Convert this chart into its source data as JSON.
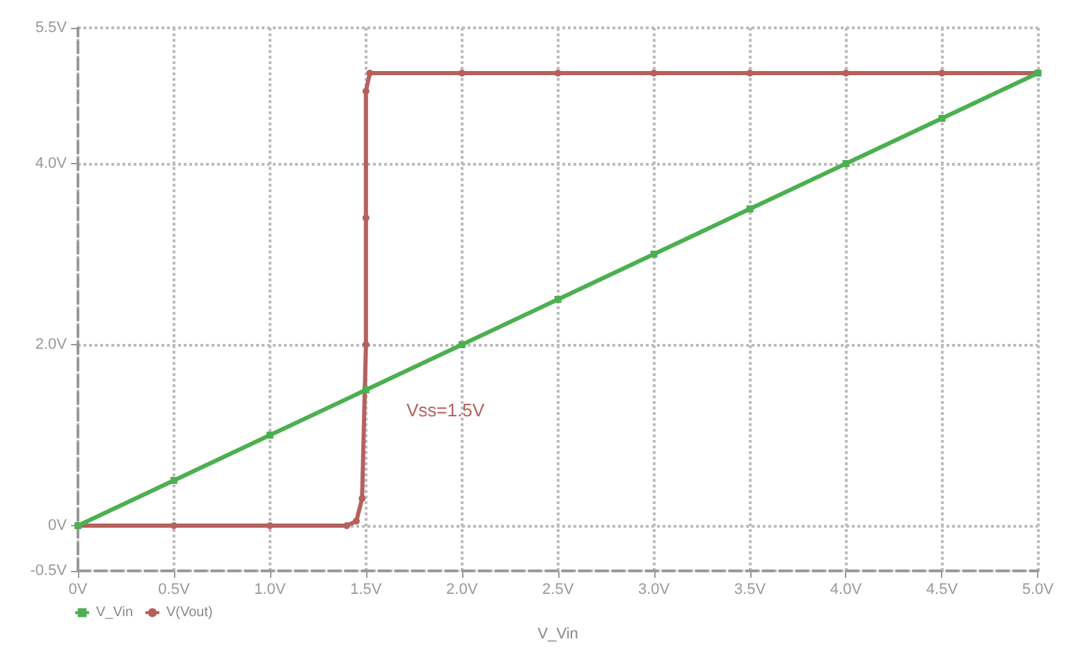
{
  "chart_data": {
    "type": "line",
    "xlabel": "V_Vin",
    "series": [
      {
        "name": "V_Vin",
        "color": "#4caf50",
        "marker": "square",
        "x": [
          0,
          0.5,
          1.0,
          1.5,
          2.0,
          2.5,
          3.0,
          3.5,
          4.0,
          4.5,
          5.0
        ],
        "values": [
          0,
          0.5,
          1.0,
          1.5,
          2.0,
          2.5,
          3.0,
          3.5,
          4.0,
          4.5,
          5.0
        ]
      },
      {
        "name": "V(Vout)",
        "color": "#b5615f",
        "marker": "circle",
        "x": [
          0,
          0.5,
          1.0,
          1.4,
          1.45,
          1.48,
          1.5,
          1.5,
          1.5,
          1.52,
          2.0,
          2.5,
          3.0,
          3.5,
          4.0,
          4.5,
          5.0
        ],
        "values": [
          0,
          0,
          0,
          0,
          0.05,
          0.3,
          2.0,
          3.4,
          4.8,
          5.0,
          5.0,
          5.0,
          5.0,
          5.0,
          5.0,
          5.0,
          5.0
        ]
      }
    ],
    "annotations": [
      "Vss=1.5V"
    ],
    "xlim": [
      0,
      5.0
    ],
    "xticks": [
      {
        "value": 0,
        "label": "0V"
      },
      {
        "value": 0.5,
        "label": "0.5V"
      },
      {
        "value": 1.0,
        "label": "1.0V"
      },
      {
        "value": 1.5,
        "label": "1.5V"
      },
      {
        "value": 2.0,
        "label": "2.0V"
      },
      {
        "value": 2.5,
        "label": "2.5V"
      },
      {
        "value": 3.0,
        "label": "3.0V"
      },
      {
        "value": 3.5,
        "label": "3.5V"
      },
      {
        "value": 4.0,
        "label": "4.0V"
      },
      {
        "value": 4.5,
        "label": "4.5V"
      },
      {
        "value": 5.0,
        "label": "5.0V"
      }
    ],
    "ylim": [
      -0.5,
      5.5
    ],
    "yticks": [
      {
        "value": -0.5,
        "label": "-0.5V"
      },
      {
        "value": 0,
        "label": "0V"
      },
      {
        "value": 2.0,
        "label": "2.0V"
      },
      {
        "value": 4.0,
        "label": "4.0V"
      },
      {
        "value": 5.5,
        "label": "5.5V"
      }
    ],
    "grid": true,
    "legend": "bottom left"
  }
}
